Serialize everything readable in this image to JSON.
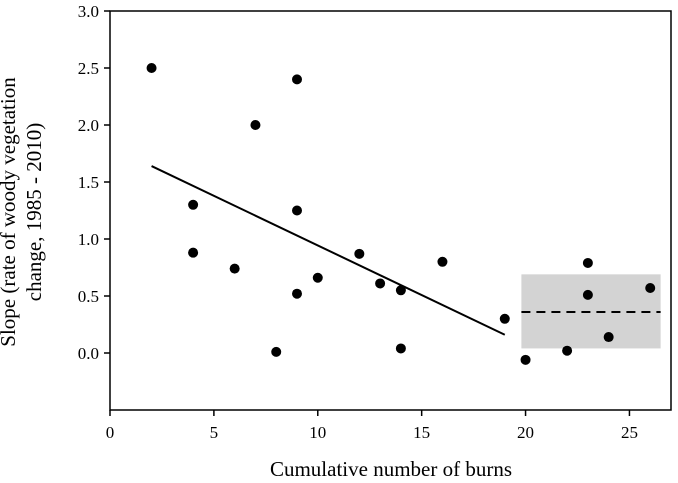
{
  "chart_data": {
    "type": "scatter",
    "xlabel": "Cumulative number of burns",
    "ylabel_lines": [
      "Slope (rate of woody vegetation",
      "change, 1985 - 2010)"
    ],
    "xlim": [
      0,
      27
    ],
    "ylim": [
      -0.5,
      3.0
    ],
    "x_ticks": [
      0,
      5,
      10,
      15,
      20,
      25
    ],
    "x_tick_labels": [
      "0",
      "5",
      "10",
      "15",
      "20",
      "25"
    ],
    "y_ticks": [
      0.0,
      0.5,
      1.0,
      1.5,
      2.0,
      2.5,
      3.0
    ],
    "y_tick_labels": [
      "0.0",
      "0.5",
      "1.0",
      "1.5",
      "2.0",
      "2.5",
      "3.0"
    ],
    "grid": false,
    "legend": "none",
    "points": [
      {
        "x": 2,
        "y": 2.5
      },
      {
        "x": 4,
        "y": 1.3
      },
      {
        "x": 4,
        "y": 0.88
      },
      {
        "x": 6,
        "y": 0.74
      },
      {
        "x": 7,
        "y": 2.0
      },
      {
        "x": 8,
        "y": 0.01
      },
      {
        "x": 9,
        "y": 2.4
      },
      {
        "x": 9,
        "y": 1.25
      },
      {
        "x": 9,
        "y": 0.52
      },
      {
        "x": 10,
        "y": 0.66
      },
      {
        "x": 12,
        "y": 0.87
      },
      {
        "x": 13,
        "y": 0.61
      },
      {
        "x": 14,
        "y": 0.55
      },
      {
        "x": 14,
        "y": 0.04
      },
      {
        "x": 16,
        "y": 0.8
      },
      {
        "x": 19,
        "y": 0.3
      },
      {
        "x": 20,
        "y": -0.06
      },
      {
        "x": 22,
        "y": 0.02
      },
      {
        "x": 23,
        "y": 0.79
      },
      {
        "x": 23,
        "y": 0.51
      },
      {
        "x": 24,
        "y": 0.14
      },
      {
        "x": 26,
        "y": 0.57
      }
    ],
    "regression_line": {
      "x": [
        2,
        19
      ],
      "y": [
        1.64,
        0.16
      ],
      "style": "solid"
    },
    "mean_line": {
      "x": [
        19.8,
        26.5
      ],
      "y": 0.36,
      "style": "dashed"
    },
    "confidence_band": {
      "x": [
        19.8,
        26.5
      ],
      "y": [
        0.04,
        0.69
      ],
      "color": "#d3d3d3"
    }
  }
}
